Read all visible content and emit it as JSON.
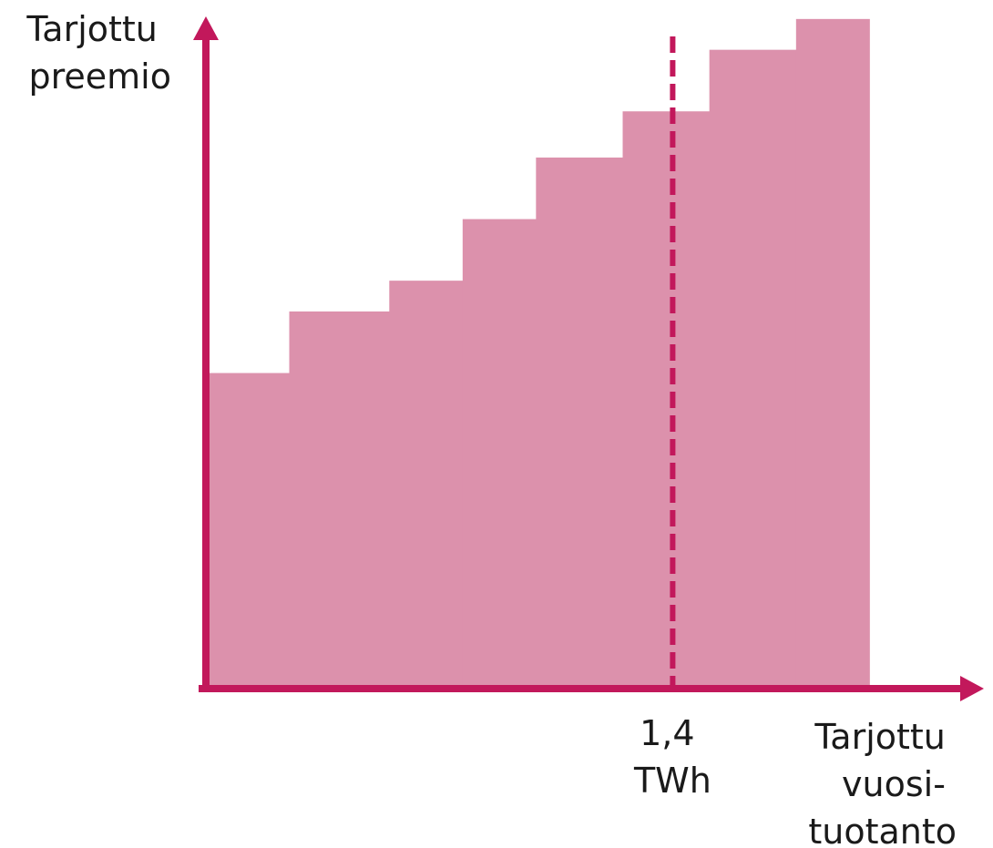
{
  "chart_data": {
    "type": "bar",
    "title": "",
    "ylabel": [
      "Tarjottu",
      "preemio"
    ],
    "xlabel": [
      "Tarjottu",
      "vuosi-",
      "tuotanto"
    ],
    "axis_color": "#c2185b",
    "bar_color": "#dc91ac",
    "marker_color": "#c2185b",
    "grid": false,
    "ylim": [
      0,
      100
    ],
    "bars": [
      {
        "x_start": 0.0,
        "x_end": 0.25,
        "value": 41
      },
      {
        "x_start": 0.25,
        "x_end": 0.55,
        "value": 49
      },
      {
        "x_start": 0.55,
        "x_end": 0.77,
        "value": 53
      },
      {
        "x_start": 0.77,
        "x_end": 0.99,
        "value": 61
      },
      {
        "x_start": 0.99,
        "x_end": 1.25,
        "value": 69
      },
      {
        "x_start": 1.25,
        "x_end": 1.51,
        "value": 75
      },
      {
        "x_start": 1.51,
        "x_end": 1.77,
        "value": 83
      },
      {
        "x_start": 1.77,
        "x_end": 1.99,
        "value": 87
      }
    ],
    "marker": {
      "x": 1.4,
      "label": [
        "1,4",
        "TWh"
      ],
      "style": "dashed"
    }
  }
}
